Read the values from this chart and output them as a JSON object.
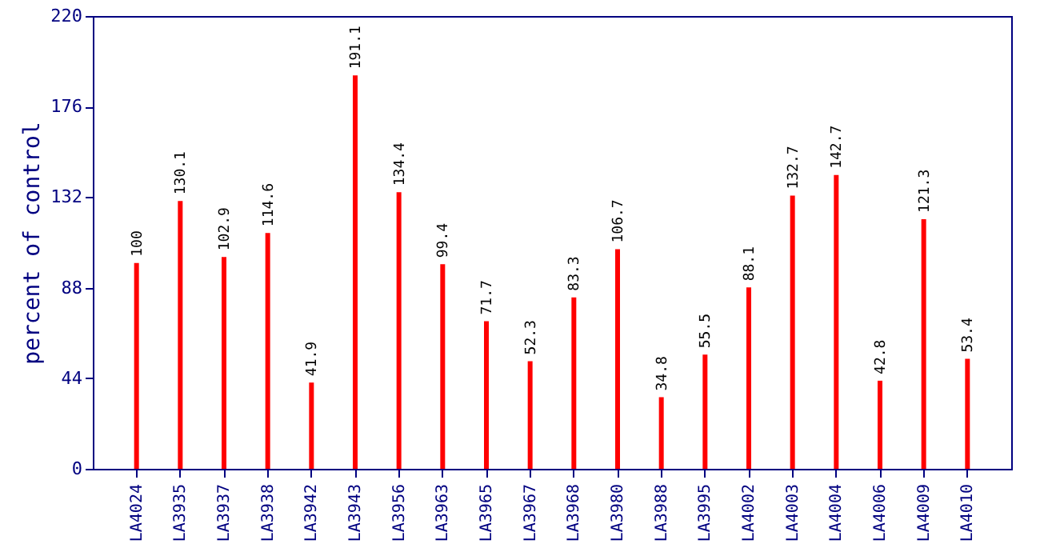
{
  "chart_data": {
    "type": "bar",
    "ylabel": "percent of control",
    "categories": [
      "LA4024",
      "LA3935",
      "LA3937",
      "LA3938",
      "LA3942",
      "LA3943",
      "LA3956",
      "LA3963",
      "LA3965",
      "LA3967",
      "LA3968",
      "LA3980",
      "LA3988",
      "LA3995",
      "LA4002",
      "LA4003",
      "LA4004",
      "LA4006",
      "LA4009",
      "LA4010"
    ],
    "values": [
      100,
      130.1,
      102.9,
      114.6,
      41.9,
      191.1,
      134.4,
      99.4,
      71.7,
      52.3,
      83.3,
      106.7,
      34.8,
      55.5,
      88.1,
      132.7,
      142.7,
      42.8,
      121.3,
      53.4
    ],
    "color": "#ff0000",
    "ylim": [
      0,
      220
    ],
    "yticks": [
      0,
      44,
      88,
      132,
      176,
      220
    ],
    "grid": false,
    "data_labels": true
  }
}
